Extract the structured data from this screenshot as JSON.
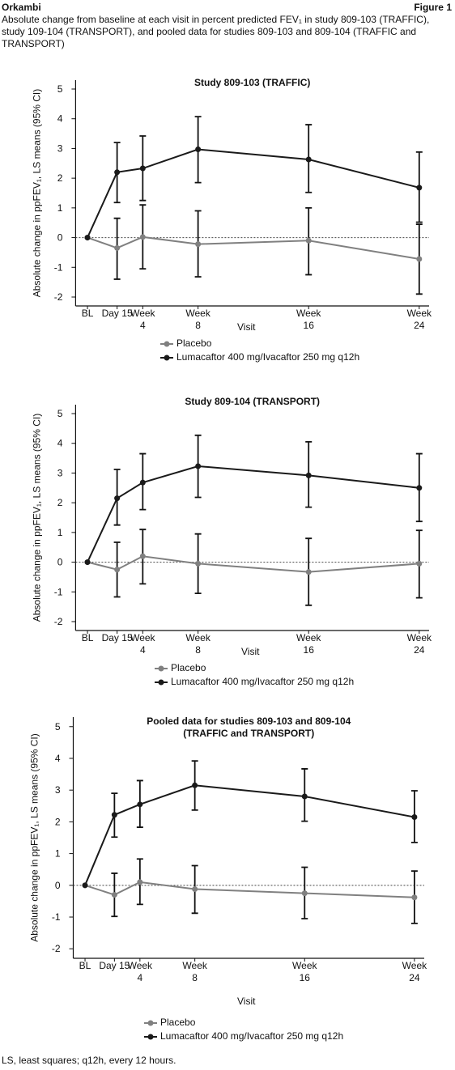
{
  "header": {
    "product": "Orkambi",
    "figure": "Figure 1",
    "caption": "Absolute change from baseline at each visit in percent predicted FEV₁ in study 809-103 (TRAFFIC), study 109-104 (TRANSPORT), and  pooled data for studies 809-103 and 809-104 (TRAFFIC and TRANSPORT)"
  },
  "footnote": "LS, least squares; q12h, every 12 hours.",
  "chart_data": [
    {
      "type": "line",
      "title": "Study 809-103 (TRAFFIC)",
      "xlabel": "Visit",
      "ylabel": "Absolute change in ppFEV₁, LS means (95% CI)",
      "x": [
        0,
        15,
        28,
        56,
        112,
        168
      ],
      "xlim": [
        -6,
        173
      ],
      "xticks": [
        {
          "value": 0,
          "label": "BL"
        },
        {
          "value": 15,
          "label": "Day 15"
        },
        {
          "value": 28,
          "label": "Week 4"
        },
        {
          "value": 56,
          "label": "Week 8"
        },
        {
          "value": 112,
          "label": "Week 16"
        },
        {
          "value": 168,
          "label": "Week 24"
        }
      ],
      "ylim": [
        -2.3,
        5.3
      ],
      "yticks": [
        -2,
        -1,
        0,
        1,
        2,
        3,
        4,
        5
      ],
      "hline": 0,
      "legend": "bottom",
      "series": [
        {
          "name": "Placebo",
          "color": "#808080",
          "values": [
            0,
            -0.35,
            0.02,
            -0.22,
            -0.1,
            -0.72
          ],
          "ci_low": [
            null,
            -1.4,
            -1.05,
            -1.32,
            -1.25,
            -1.9
          ],
          "ci_high": [
            null,
            0.65,
            1.1,
            0.9,
            1.0,
            0.45
          ]
        },
        {
          "name": "Lumacaftor 400 mg/Ivacaftor 250 mg q12h",
          "color": "#1a1a1a",
          "values": [
            0,
            2.2,
            2.33,
            2.97,
            2.63,
            1.68
          ],
          "ci_low": [
            null,
            1.18,
            1.25,
            1.85,
            1.52,
            0.52
          ],
          "ci_high": [
            null,
            3.2,
            3.42,
            4.07,
            3.8,
            2.88
          ]
        }
      ]
    },
    {
      "type": "line",
      "title": "Study 809-104 (TRANSPORT)",
      "xlabel": "Visit",
      "ylabel": "Absolute change in ppFEV₁, LS means (95% CI)",
      "x": [
        0,
        15,
        28,
        56,
        112,
        168
      ],
      "xlim": [
        -6,
        173
      ],
      "xticks": [
        {
          "value": 0,
          "label": "BL"
        },
        {
          "value": 15,
          "label": "Day 15"
        },
        {
          "value": 28,
          "label": "Week 4"
        },
        {
          "value": 56,
          "label": "Week 8"
        },
        {
          "value": 112,
          "label": "Week 16"
        },
        {
          "value": 168,
          "label": "Week 24"
        }
      ],
      "ylim": [
        -2.3,
        5.3
      ],
      "yticks": [
        -2,
        -1,
        0,
        1,
        2,
        3,
        4,
        5
      ],
      "hline": 0,
      "legend": "bottom",
      "series": [
        {
          "name": "Placebo",
          "color": "#808080",
          "values": [
            0,
            -0.25,
            0.2,
            -0.05,
            -0.33,
            -0.05
          ],
          "ci_low": [
            null,
            -1.17,
            -0.73,
            -1.05,
            -1.45,
            -1.2
          ],
          "ci_high": [
            null,
            0.67,
            1.1,
            0.95,
            0.8,
            1.07
          ]
        },
        {
          "name": "Lumacaftor 400 mg/Ivacaftor 250 mg q12h",
          "color": "#1a1a1a",
          "values": [
            0,
            2.15,
            2.68,
            3.23,
            2.92,
            2.5
          ],
          "ci_low": [
            null,
            1.25,
            1.77,
            2.18,
            1.85,
            1.37
          ],
          "ci_high": [
            null,
            3.12,
            3.65,
            4.27,
            4.05,
            3.65
          ]
        }
      ]
    },
    {
      "type": "line",
      "title": "Pooled data for studies 809-103 and 809-104 (TRAFFIC and TRANSPORT)",
      "xlabel": "Visit",
      "ylabel": "Absolute change in ppFEV₁, LS means (95% CI)",
      "x": [
        0,
        15,
        28,
        56,
        112,
        168
      ],
      "xlim": [
        -6,
        173
      ],
      "xticks": [
        {
          "value": 0,
          "label": "BL"
        },
        {
          "value": 15,
          "label": "Day 15"
        },
        {
          "value": 28,
          "label": "Week 4"
        },
        {
          "value": 56,
          "label": "Week 8"
        },
        {
          "value": 112,
          "label": "Week 16"
        },
        {
          "value": 168,
          "label": "Week 24"
        }
      ],
      "ylim": [
        -2.3,
        5.3
      ],
      "yticks": [
        -2,
        -1,
        0,
        1,
        2,
        3,
        4,
        5
      ],
      "hline": 0,
      "legend": "bottom",
      "series": [
        {
          "name": "Placebo",
          "color": "#808080",
          "values": [
            0,
            -0.3,
            0.1,
            -0.12,
            -0.25,
            -0.38
          ],
          "ci_low": [
            null,
            -0.98,
            -0.6,
            -0.88,
            -1.05,
            -1.2
          ],
          "ci_high": [
            null,
            0.38,
            0.83,
            0.62,
            0.57,
            0.45
          ]
        },
        {
          "name": "Lumacaftor 400 mg/Ivacaftor 250 mg q12h",
          "color": "#1a1a1a",
          "values": [
            0,
            2.22,
            2.55,
            3.15,
            2.8,
            2.15
          ],
          "ci_low": [
            null,
            1.52,
            1.83,
            2.37,
            2.02,
            1.35
          ],
          "ci_high": [
            null,
            2.9,
            3.3,
            3.92,
            3.67,
            2.98
          ]
        }
      ]
    }
  ]
}
